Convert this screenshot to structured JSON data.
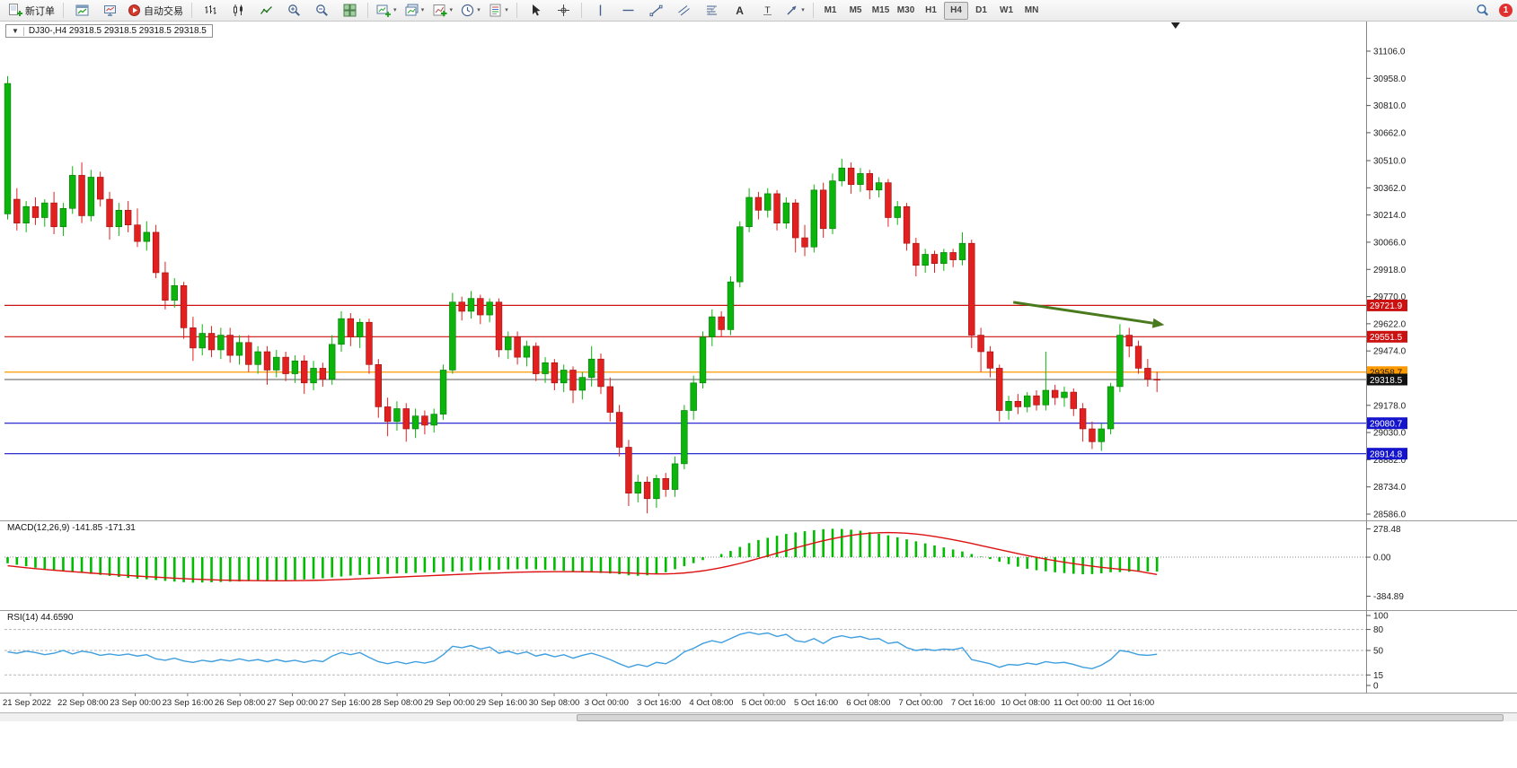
{
  "toolbar": {
    "new_order_label": "新订单",
    "auto_trading_label": "自动交易",
    "timeframes": [
      "M1",
      "M5",
      "M15",
      "M30",
      "H1",
      "H4",
      "D1",
      "W1",
      "MN"
    ],
    "active_timeframe": "H4",
    "notification_count": "1"
  },
  "chart": {
    "title": "DJ30-,H4 29318.5 29318.5 29318.5 29318.5",
    "symbol": "DJ30-",
    "period": "H4",
    "open": "29318.5",
    "high": "29318.5",
    "low": "29318.5",
    "close": "29318.5"
  },
  "price_axis": {
    "ticks": [
      "31106.0",
      "30958.0",
      "30810.0",
      "30662.0",
      "30510.0",
      "30362.0",
      "30214.0",
      "30066.0",
      "29918.0",
      "29770.0",
      "29622.0",
      "29474.0",
      "29178.0",
      "29030.0",
      "28882.0",
      "28734.0",
      "28586.0"
    ]
  },
  "time_axis": {
    "labels": [
      "21 Sep 2022",
      "22 Sep 08:00",
      "23 Sep 00:00",
      "23 Sep 16:00",
      "26 Sep 08:00",
      "27 Sep 00:00",
      "27 Sep 16:00",
      "28 Sep 08:00",
      "29 Sep 00:00",
      "29 Sep 16:00",
      "30 Sep 08:00",
      "3 Oct 00:00",
      "3 Oct 16:00",
      "4 Oct 08:00",
      "5 Oct 00:00",
      "5 Oct 16:00",
      "6 Oct 08:00",
      "7 Oct 00:00",
      "7 Oct 16:00",
      "10 Oct 08:00",
      "11 Oct 00:00",
      "11 Oct 16:00"
    ]
  },
  "indicators": {
    "macd": {
      "label": "MACD(12,26,9) -141.85 -171.31",
      "axis": [
        "278.48",
        "0.00",
        "-384.89"
      ]
    },
    "rsi": {
      "label": "RSI(14) 44.6590",
      "axis": [
        "100",
        "80",
        "50",
        "15",
        "0"
      ],
      "levels": [
        80,
        50,
        15
      ]
    }
  },
  "chart_data": {
    "type": "candlestick",
    "symbol": "DJ30-",
    "timeframe": "H4",
    "bull_color": "#0cb50c",
    "bear_color": "#e32020",
    "macd_color": "#00bb00",
    "macd_signal_color": "#dd1111",
    "rsi_color": "#3f9fdf",
    "candles": [
      [
        30220,
        30970,
        30190,
        30930
      ],
      [
        30300,
        30360,
        30130,
        30170
      ],
      [
        30170,
        30290,
        30120,
        30260
      ],
      [
        30260,
        30310,
        30160,
        30200
      ],
      [
        30200,
        30300,
        30150,
        30280
      ],
      [
        30280,
        30340,
        30110,
        30150
      ],
      [
        30150,
        30280,
        30100,
        30250
      ],
      [
        30250,
        30480,
        30220,
        30430
      ],
      [
        30430,
        30500,
        30170,
        30210
      ],
      [
        30210,
        30460,
        30180,
        30420
      ],
      [
        30420,
        30450,
        30260,
        30300
      ],
      [
        30300,
        30340,
        30080,
        30150
      ],
      [
        30150,
        30280,
        30100,
        30240
      ],
      [
        30240,
        30290,
        30120,
        30160
      ],
      [
        30160,
        30250,
        30040,
        30070
      ],
      [
        30070,
        30180,
        30020,
        30120
      ],
      [
        30120,
        30160,
        29870,
        29900
      ],
      [
        29900,
        29960,
        29700,
        29750
      ],
      [
        29750,
        29870,
        29710,
        29830
      ],
      [
        29830,
        29850,
        29540,
        29600
      ],
      [
        29600,
        29660,
        29420,
        29490
      ],
      [
        29490,
        29620,
        29450,
        29570
      ],
      [
        29570,
        29610,
        29440,
        29480
      ],
      [
        29480,
        29600,
        29430,
        29560
      ],
      [
        29560,
        29600,
        29410,
        29450
      ],
      [
        29450,
        29560,
        29400,
        29520
      ],
      [
        29520,
        29560,
        29360,
        29400
      ],
      [
        29400,
        29500,
        29350,
        29470
      ],
      [
        29470,
        29500,
        29290,
        29370
      ],
      [
        29370,
        29480,
        29330,
        29440
      ],
      [
        29440,
        29470,
        29310,
        29350
      ],
      [
        29350,
        29450,
        29300,
        29420
      ],
      [
        29420,
        29450,
        29240,
        29300
      ],
      [
        29300,
        29420,
        29260,
        29380
      ],
      [
        29380,
        29410,
        29280,
        29320
      ],
      [
        29320,
        29560,
        29290,
        29510
      ],
      [
        29510,
        29690,
        29470,
        29650
      ],
      [
        29650,
        29680,
        29500,
        29550
      ],
      [
        29550,
        29650,
        29490,
        29630
      ],
      [
        29630,
        29650,
        29350,
        29400
      ],
      [
        29400,
        29430,
        29110,
        29170
      ],
      [
        29170,
        29220,
        29010,
        29090
      ],
      [
        29090,
        29200,
        29040,
        29160
      ],
      [
        29160,
        29190,
        28980,
        29050
      ],
      [
        29050,
        29160,
        29000,
        29120
      ],
      [
        29120,
        29150,
        29020,
        29070
      ],
      [
        29070,
        29160,
        29030,
        29130
      ],
      [
        29130,
        29400,
        29100,
        29370
      ],
      [
        29370,
        29790,
        29350,
        29740
      ],
      [
        29740,
        29770,
        29640,
        29690
      ],
      [
        29690,
        29800,
        29650,
        29760
      ],
      [
        29760,
        29780,
        29620,
        29670
      ],
      [
        29670,
        29760,
        29630,
        29740
      ],
      [
        29740,
        29760,
        29440,
        29480
      ],
      [
        29480,
        29580,
        29430,
        29550
      ],
      [
        29550,
        29580,
        29400,
        29440
      ],
      [
        29440,
        29530,
        29390,
        29500
      ],
      [
        29500,
        29520,
        29310,
        29350
      ],
      [
        29350,
        29440,
        29300,
        29410
      ],
      [
        29410,
        29430,
        29260,
        29300
      ],
      [
        29300,
        29400,
        29250,
        29370
      ],
      [
        29370,
        29390,
        29190,
        29260
      ],
      [
        29260,
        29360,
        29210,
        29330
      ],
      [
        29330,
        29500,
        29280,
        29430
      ],
      [
        29430,
        29460,
        29240,
        29280
      ],
      [
        29280,
        29330,
        29090,
        29140
      ],
      [
        29140,
        29180,
        28900,
        28950
      ],
      [
        28950,
        28990,
        28630,
        28700
      ],
      [
        28700,
        28800,
        28650,
        28760
      ],
      [
        28760,
        28790,
        28590,
        28670
      ],
      [
        28670,
        28800,
        28620,
        28780
      ],
      [
        28780,
        28810,
        28680,
        28720
      ],
      [
        28720,
        28900,
        28680,
        28860
      ],
      [
        28860,
        29180,
        28830,
        29150
      ],
      [
        29150,
        29340,
        29100,
        29300
      ],
      [
        29300,
        29580,
        29270,
        29550
      ],
      [
        29550,
        29700,
        29500,
        29660
      ],
      [
        29660,
        29690,
        29550,
        29590
      ],
      [
        29590,
        29880,
        29560,
        29850
      ],
      [
        29850,
        30180,
        29820,
        30150
      ],
      [
        30150,
        30360,
        30120,
        30310
      ],
      [
        30310,
        30340,
        30190,
        30240
      ],
      [
        30240,
        30360,
        30200,
        30330
      ],
      [
        30330,
        30350,
        30130,
        30170
      ],
      [
        30170,
        30310,
        30140,
        30280
      ],
      [
        30280,
        30300,
        30010,
        30090
      ],
      [
        30090,
        30160,
        29990,
        30040
      ],
      [
        30040,
        30380,
        30010,
        30350
      ],
      [
        30350,
        30390,
        30090,
        30140
      ],
      [
        30140,
        30440,
        30110,
        30400
      ],
      [
        30400,
        30520,
        30370,
        30470
      ],
      [
        30470,
        30500,
        30330,
        30380
      ],
      [
        30380,
        30470,
        30340,
        30440
      ],
      [
        30440,
        30460,
        30300,
        30350
      ],
      [
        30350,
        30420,
        30310,
        30390
      ],
      [
        30390,
        30410,
        30150,
        30200
      ],
      [
        30200,
        30290,
        30160,
        30260
      ],
      [
        30260,
        30280,
        30020,
        30060
      ],
      [
        30060,
        30090,
        29880,
        29940
      ],
      [
        29940,
        30030,
        29900,
        30000
      ],
      [
        30000,
        30020,
        29900,
        29950
      ],
      [
        29950,
        30030,
        29910,
        30010
      ],
      [
        30010,
        30030,
        29930,
        29970
      ],
      [
        29970,
        30120,
        29940,
        30060
      ],
      [
        30060,
        30080,
        29490,
        29560
      ],
      [
        29560,
        29600,
        29360,
        29470
      ],
      [
        29470,
        29500,
        29330,
        29380
      ],
      [
        29380,
        29400,
        29090,
        29150
      ],
      [
        29150,
        29230,
        29100,
        29200
      ],
      [
        29200,
        29240,
        29130,
        29170
      ],
      [
        29170,
        29250,
        29140,
        29230
      ],
      [
        29230,
        29260,
        29150,
        29180
      ],
      [
        29180,
        29470,
        29150,
        29260
      ],
      [
        29260,
        29290,
        29180,
        29220
      ],
      [
        29220,
        29280,
        29170,
        29250
      ],
      [
        29250,
        29270,
        29120,
        29160
      ],
      [
        29160,
        29190,
        28980,
        29050
      ],
      [
        29050,
        29090,
        28940,
        28980
      ],
      [
        28980,
        29080,
        28930,
        29050
      ],
      [
        29050,
        29300,
        29020,
        29280
      ],
      [
        29280,
        29620,
        29250,
        29560
      ],
      [
        29560,
        29600,
        29440,
        29500
      ],
      [
        29500,
        29530,
        29350,
        29380
      ],
      [
        29380,
        29430,
        29280,
        29320
      ],
      [
        29320,
        29360,
        29250,
        29318.5
      ]
    ],
    "macd_hist": [
      -60,
      -75,
      -90,
      -105,
      -115,
      -125,
      -135,
      -145,
      -155,
      -165,
      -175,
      -185,
      -195,
      -205,
      -212,
      -218,
      -226,
      -234,
      -241,
      -247,
      -251,
      -250,
      -248,
      -245,
      -242,
      -240,
      -237,
      -234,
      -231,
      -229,
      -227,
      -224,
      -220,
      -215,
      -209,
      -200,
      -191,
      -182,
      -176,
      -171,
      -168,
      -165,
      -161,
      -158,
      -155,
      -152,
      -150,
      -147,
      -143,
      -139,
      -134,
      -130,
      -127,
      -124,
      -121,
      -119,
      -118,
      -120,
      -124,
      -129,
      -134,
      -140,
      -146,
      -151,
      -156,
      -161,
      -169,
      -179,
      -184,
      -179,
      -169,
      -149,
      -119,
      -89,
      -59,
      -29,
      1,
      31,
      61,
      101,
      139,
      169,
      191,
      211,
      229,
      244,
      256,
      266,
      276,
      280,
      278,
      271,
      261,
      246,
      231,
      216,
      196,
      176,
      156,
      136,
      116,
      96,
      76,
      56,
      31,
      6,
      -19,
      -44,
      -69,
      -94,
      -114,
      -129,
      -139,
      -149,
      -157,
      -164,
      -169,
      -167,
      -159,
      -149,
      -147,
      -144,
      -142,
      -141,
      -141.85
    ],
    "macd_signal": [
      -85,
      -95,
      -105,
      -113,
      -121,
      -129,
      -136,
      -143,
      -150,
      -157,
      -163,
      -169,
      -175,
      -181,
      -187,
      -192,
      -197,
      -202,
      -207,
      -212,
      -216,
      -220,
      -223,
      -226,
      -228,
      -230,
      -231,
      -232,
      -233,
      -233,
      -233,
      -232,
      -231,
      -229,
      -227,
      -224,
      -221,
      -217,
      -213,
      -209,
      -205,
      -201,
      -197,
      -193,
      -189,
      -185,
      -181,
      -177,
      -173,
      -169,
      -165,
      -161,
      -158,
      -155,
      -152,
      -149,
      -147,
      -145,
      -144,
      -143,
      -143,
      -143,
      -144,
      -145,
      -147,
      -149,
      -152,
      -156,
      -160,
      -163,
      -165,
      -165,
      -162,
      -156,
      -147,
      -135,
      -120,
      -103,
      -84,
      -62,
      -38,
      -13,
      13,
      39,
      65,
      91,
      116,
      140,
      162,
      182,
      200,
      215,
      227,
      236,
      241,
      243,
      241,
      236,
      228,
      217,
      204,
      189,
      172,
      154,
      135,
      115,
      95,
      75,
      55,
      35,
      16,
      -2,
      -19,
      -35,
      -50,
      -64,
      -77,
      -89,
      -100,
      -110,
      -119,
      -127,
      -139,
      -155,
      -171.31
    ],
    "rsi": [
      48,
      46,
      49,
      47,
      44,
      46,
      50,
      45,
      49,
      47,
      43,
      45,
      43,
      45,
      42,
      44,
      38,
      36,
      39,
      35,
      33,
      36,
      34,
      37,
      35,
      38,
      35,
      37,
      34,
      37,
      34,
      36,
      33,
      36,
      34,
      42,
      47,
      44,
      47,
      40,
      34,
      31,
      34,
      31,
      34,
      32,
      35,
      44,
      56,
      54,
      57,
      52,
      55,
      46,
      49,
      45,
      48,
      42,
      45,
      41,
      44,
      39,
      43,
      46,
      42,
      37,
      31,
      26,
      30,
      27,
      33,
      31,
      38,
      48,
      53,
      60,
      64,
      61,
      67,
      73,
      76,
      73,
      75,
      70,
      73,
      64,
      62,
      67,
      60,
      68,
      71,
      68,
      70,
      66,
      67,
      60,
      62,
      54,
      50,
      52,
      50,
      52,
      51,
      54,
      37,
      34,
      31,
      26,
      30,
      29,
      32,
      30,
      34,
      32,
      33,
      30,
      26,
      24,
      29,
      37,
      50,
      48,
      44,
      43,
      44.66
    ],
    "hlines": [
      {
        "price": 29721.9,
        "color": "#cc1111",
        "label_fg": "#ffffff"
      },
      {
        "price": 29551.5,
        "color": "#cc1111",
        "label_fg": "#ffffff"
      },
      {
        "price": 29358.7,
        "color": "#ff9900",
        "label_fg": "#1a1a1a"
      },
      {
        "price": 29080.7,
        "color": "#1414cc",
        "label_fg": "#ffffff"
      },
      {
        "price": 28914.8,
        "color": "#1414cc",
        "label_fg": "#ffffff"
      }
    ],
    "current_price": {
      "price": 29318.5,
      "line_color": "#555555",
      "badge_bg": "#111111",
      "badge_fg": "#ffffff"
    },
    "trend_arrow": {
      "i1": 108.5,
      "p1": 29739,
      "i2": 124.8,
      "p2": 29616,
      "color": "#4a7a1e"
    }
  }
}
